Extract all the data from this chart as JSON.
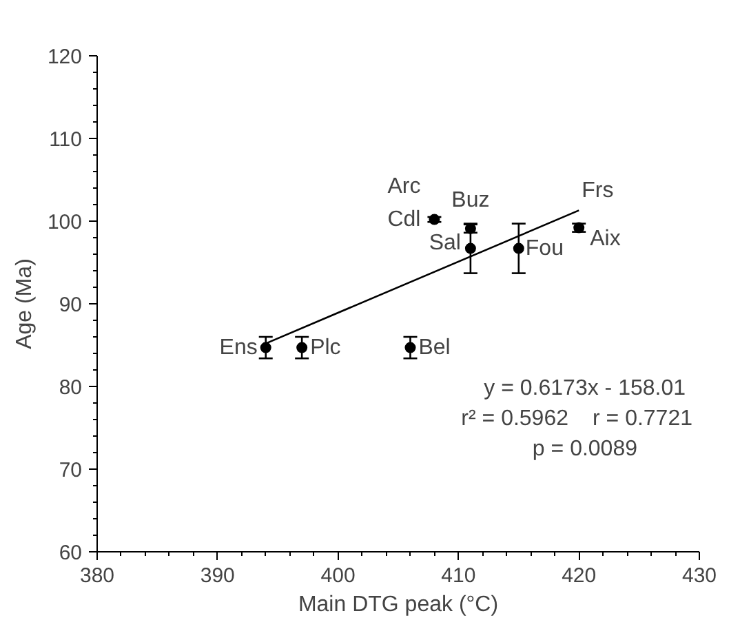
{
  "chart_data": {
    "type": "scatter",
    "xlabel": "Main DTG peak (°C)",
    "ylabel": "Age (Ma)",
    "xlim": [
      380,
      430
    ],
    "xticks": [
      380,
      390,
      400,
      410,
      420,
      430
    ],
    "ylim": [
      60,
      120
    ],
    "yticks": [
      60,
      70,
      80,
      90,
      100,
      110,
      120
    ],
    "grid": false,
    "marker": "circle",
    "series": [
      {
        "color": "#000000",
        "x": [
          394,
          397,
          406,
          411,
          415,
          411,
          408,
          420
        ],
        "values": [
          84.7,
          84.7,
          84.7,
          96.7,
          96.7,
          99.1,
          100.2,
          99.2
        ],
        "errors": [
          1.3,
          1.3,
          1.3,
          3,
          3,
          0.5,
          0.3,
          0.5
        ]
      },
      {
        "type": "line",
        "color": "#000000",
        "x": [
          394,
          420
        ],
        "values": [
          85.2,
          101.3
        ],
        "line_style": "solid",
        "marker": "none"
      }
    ],
    "annotations": [
      {
        "text": "Ens",
        "x": 394,
        "y": 84.7
      },
      {
        "text": "Plc",
        "x": 397,
        "y": 84.7
      },
      {
        "text": "Bel",
        "x": 406,
        "y": 84.7
      },
      {
        "text": "Sal",
        "x": 411,
        "y": 96.7
      },
      {
        "text": "Fou",
        "x": 415,
        "y": 96.7
      },
      {
        "text": "Buz",
        "x": 411,
        "y": 99.1
      },
      {
        "text": "Cdl",
        "x": 408,
        "y": 100.2
      },
      {
        "text": "Arc",
        "x": 408,
        "y": 100.2
      },
      {
        "text": "Frs",
        "x": 420,
        "y": 101.3
      },
      {
        "text": "Aix",
        "x": 420,
        "y": 99.2
      },
      "y = 0.6173x - 158.01",
      "r² = 0.5962",
      "r = 0.7721",
      "p = 0.0089"
    ]
  }
}
